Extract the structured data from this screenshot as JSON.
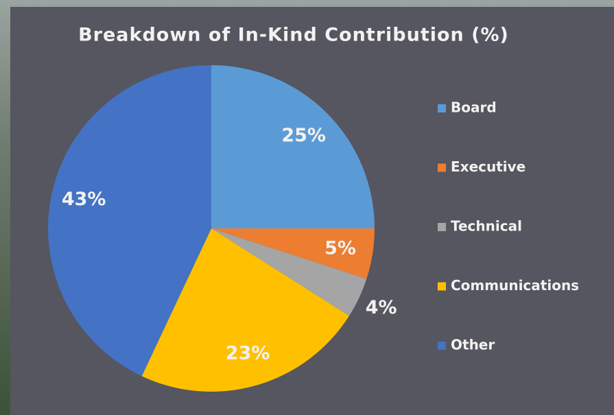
{
  "chart_data": {
    "type": "pie",
    "title": "Breakdown  of In-Kind  Contribution  (%)",
    "categories": [
      "Board",
      "Executive",
      "Technical",
      "Communications",
      "Other"
    ],
    "values": [
      25,
      5,
      4,
      23,
      43
    ],
    "value_labels": [
      "25%",
      "5%",
      "4%",
      "23%",
      "43%"
    ],
    "colors": [
      "#5b9bd5",
      "#ed7d31",
      "#a5a5a5",
      "#ffc000",
      "#4472c4"
    ],
    "legend": "right"
  }
}
